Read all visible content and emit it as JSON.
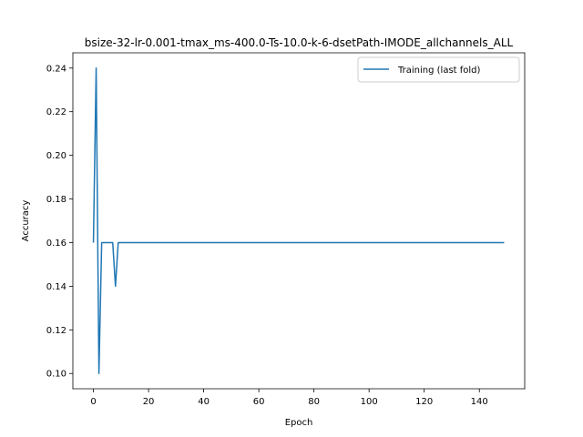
{
  "chart_data": {
    "type": "line",
    "title": "bsize-32-lr-0.001-tmax_ms-400.0-Ts-10.0-k-6-dsetPath-IMODE_allchannels_ALL",
    "xlabel": "Epoch",
    "ylabel": "Accuracy",
    "xlim": [
      -7.45,
      156.45
    ],
    "ylim": [
      0.093,
      0.247
    ],
    "xticks": [
      0,
      20,
      40,
      60,
      80,
      100,
      120,
      140
    ],
    "yticks": [
      0.1,
      0.12,
      0.14,
      0.16,
      0.18,
      0.2,
      0.22,
      0.24
    ],
    "ytick_labels": [
      "0.10",
      "0.12",
      "0.14",
      "0.16",
      "0.18",
      "0.20",
      "0.22",
      "0.24"
    ],
    "legend_position": "top-right",
    "grid": false,
    "series": [
      {
        "name": "Training (last fold)",
        "color": "#1f77b4",
        "points": [
          [
            0,
            0.16
          ],
          [
            1,
            0.24
          ],
          [
            2,
            0.1
          ],
          [
            3,
            0.16
          ],
          [
            4,
            0.16
          ],
          [
            5,
            0.16
          ],
          [
            6,
            0.16
          ],
          [
            7,
            0.16
          ],
          [
            8,
            0.14
          ],
          [
            9,
            0.16
          ],
          [
            10,
            0.16
          ],
          [
            149,
            0.16
          ]
        ]
      }
    ]
  }
}
